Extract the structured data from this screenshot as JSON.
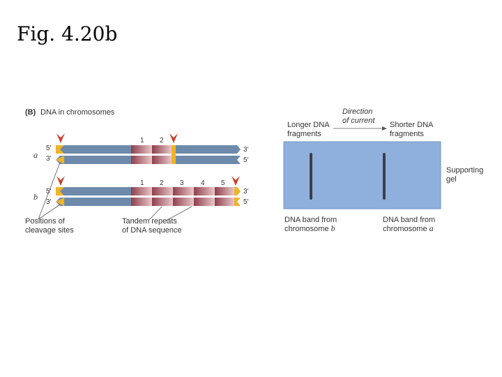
{
  "slide": {
    "title": "Fig. 4.20b"
  },
  "panel_b": {
    "letter": "(B)",
    "heading": "DNA in chromosomes",
    "chromosome_a": {
      "label": "a",
      "top_left": "5′",
      "top_right": "3′",
      "bottom_left": "3′",
      "bottom_right": "5′",
      "repeats": [
        "1",
        "2"
      ]
    },
    "chromosome_b": {
      "label": "b",
      "top_left": "5′",
      "top_right": "3′",
      "bottom_left": "3′",
      "bottom_right": "5′",
      "repeats": [
        "1",
        "2",
        "3",
        "4",
        "5"
      ]
    },
    "cleavage_label": [
      "Positions of",
      "cleavage sites"
    ],
    "tandem_label": [
      "Tandem repeats",
      "of DNA sequence"
    ]
  },
  "gel": {
    "direction_label": [
      "Direction",
      "of current"
    ],
    "longer_label": [
      "Longer DNA",
      "fragments"
    ],
    "shorter_label": [
      "Shorter DNA",
      "fragments"
    ],
    "supporting_label": [
      "Supporting",
      "gel"
    ],
    "band_b_label": [
      "DNA band from",
      "chromosome "
    ],
    "band_b_italic": "b",
    "band_a_label": [
      "DNA band from",
      "chromosome "
    ],
    "band_a_italic": "a"
  },
  "colors": {
    "strand_blue": "#6d8aaa",
    "repeat_red": "#9a4a55",
    "cleavage_yellow": "#f0b428",
    "arrow_red": "#c8422a",
    "gel_blue": "#8fb0dd",
    "band_dark": "#3a4048"
  }
}
